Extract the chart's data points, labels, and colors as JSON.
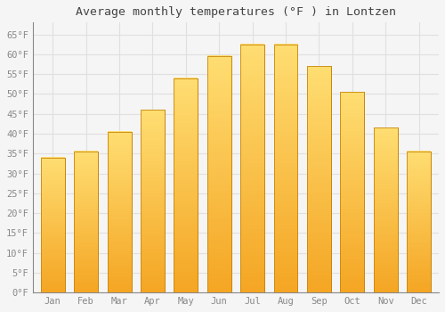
{
  "title": "Average monthly temperatures (°F ) in Lontzen",
  "months": [
    "Jan",
    "Feb",
    "Mar",
    "Apr",
    "May",
    "Jun",
    "Jul",
    "Aug",
    "Sep",
    "Oct",
    "Nov",
    "Dec"
  ],
  "values": [
    34.0,
    35.5,
    40.5,
    46.0,
    54.0,
    59.5,
    62.5,
    62.5,
    57.0,
    50.5,
    41.5,
    35.5
  ],
  "bar_color_top": "#FFD966",
  "bar_color_bottom": "#F5A623",
  "bar_edge_color": "#C8860A",
  "background_color": "#F5F5F5",
  "grid_color": "#E0E0E0",
  "ylim": [
    0,
    68
  ],
  "yticks": [
    0,
    5,
    10,
    15,
    20,
    25,
    30,
    35,
    40,
    45,
    50,
    55,
    60,
    65
  ],
  "title_fontsize": 9.5,
  "tick_fontsize": 7.5,
  "tick_font_color": "#888888",
  "title_color": "#444444"
}
